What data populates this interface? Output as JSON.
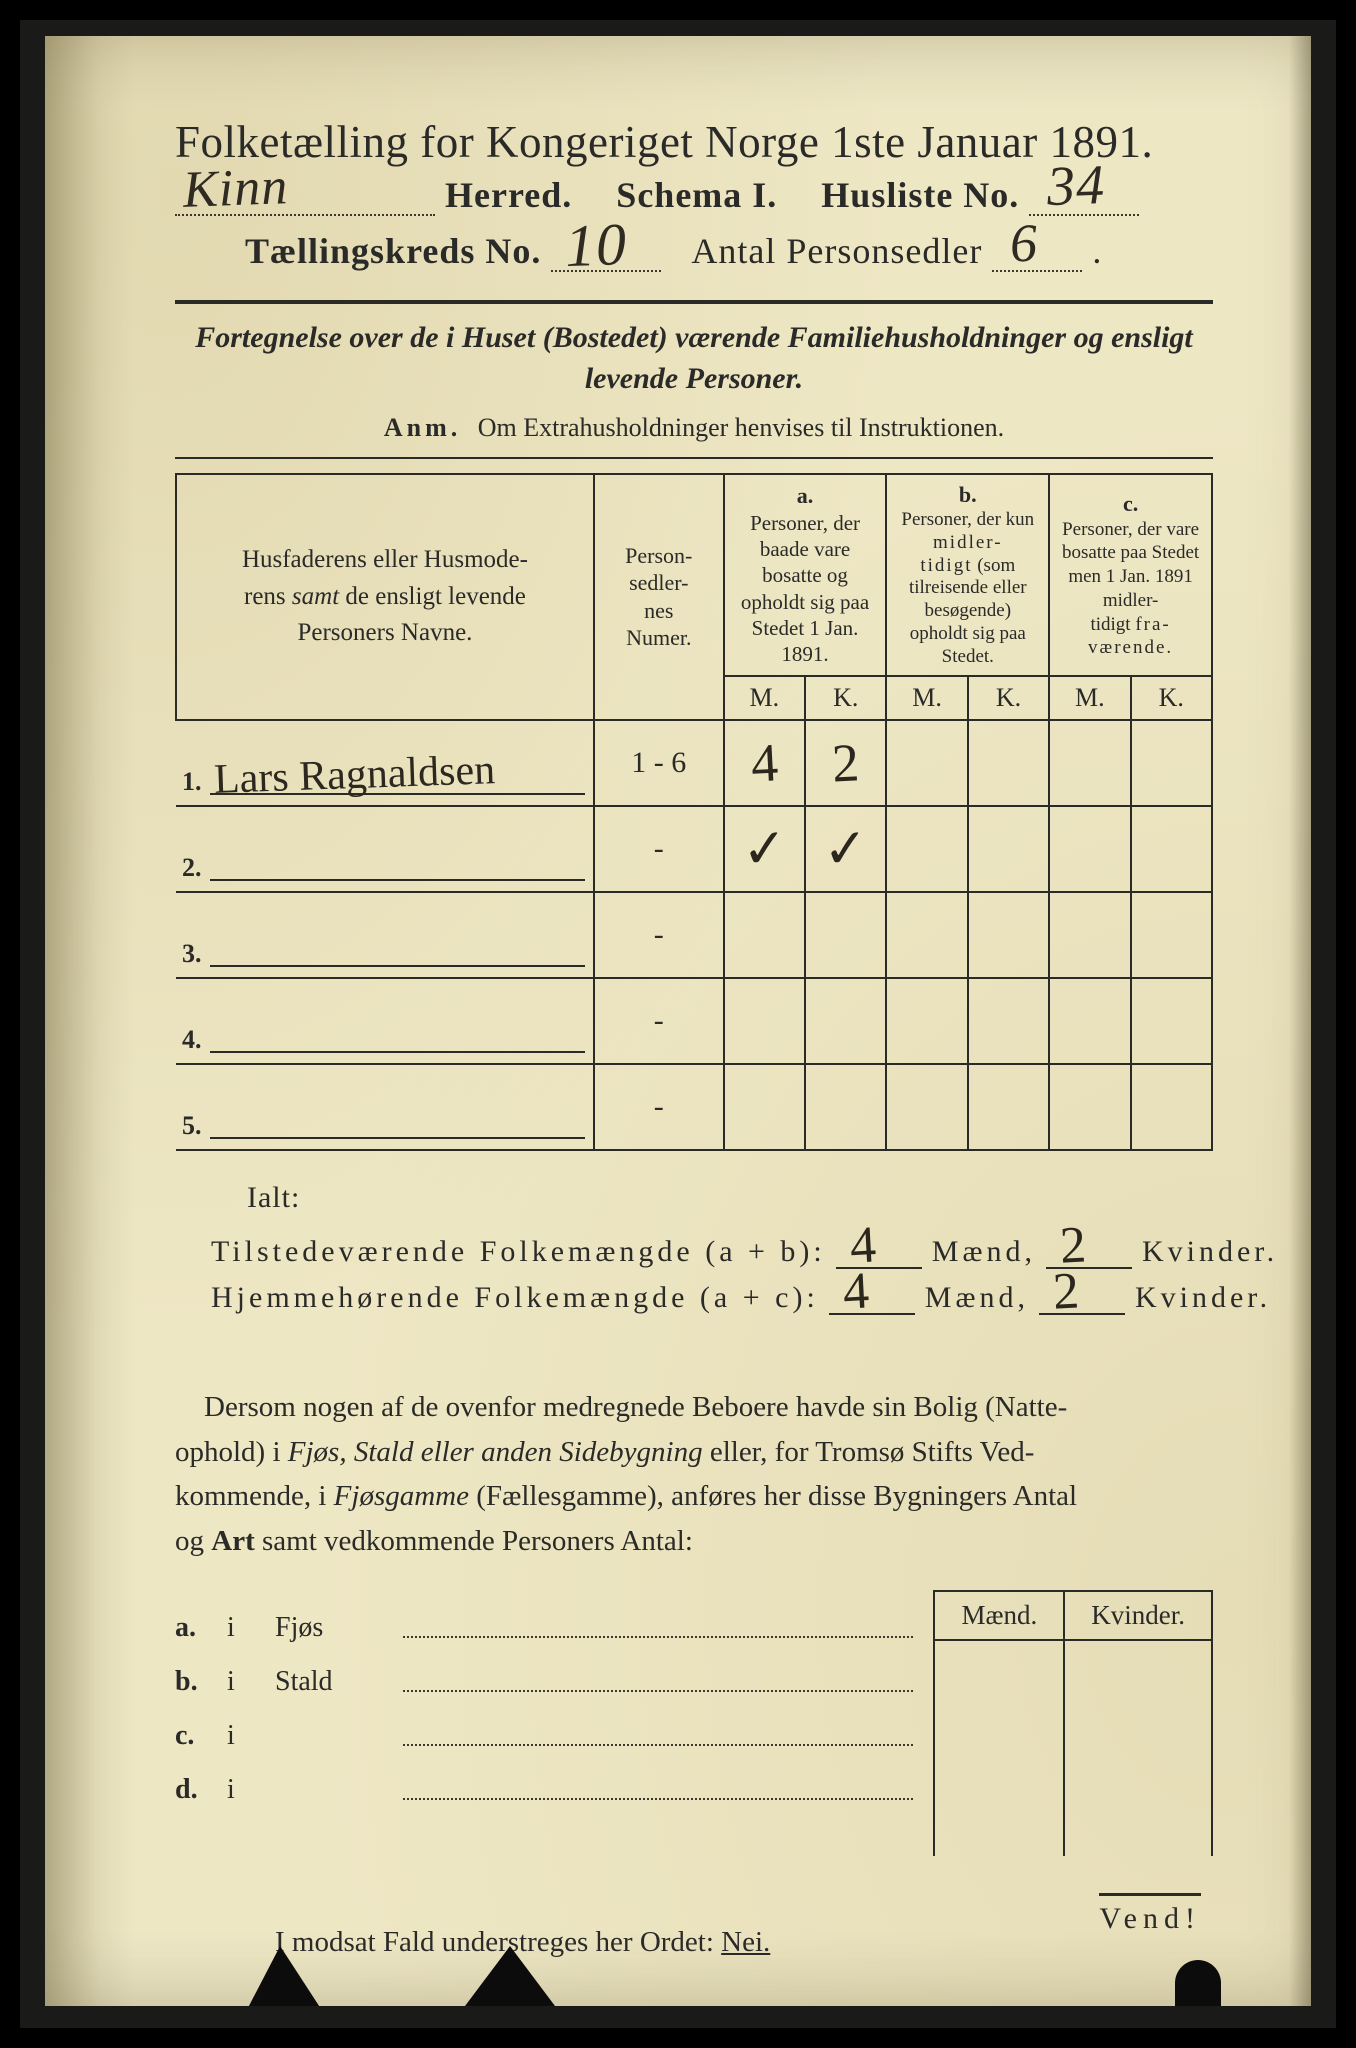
{
  "colors": {
    "paper": "#eee7c4",
    "ink": "#2a2a28",
    "handwriting": "#2d281f",
    "frame": "#000000"
  },
  "title": "Folketælling for Kongeriget Norge 1ste Januar 1891.",
  "header": {
    "herred_label": "Herred.",
    "herred_value": "Kinn",
    "schema_label": "Schema I.",
    "husliste_label": "Husliste No.",
    "husliste_value": "34",
    "kreds_label": "Tællingskreds No.",
    "kreds_value": "10",
    "antal_label": "Antal Personsedler",
    "antal_value": "6"
  },
  "subhead_html": "Fortegnelse over de i Huset (Bostedet) værende Familiehusholdninger og ensligt levende Personer.",
  "anm_label": "Anm.",
  "anm_text": "Om Extrahusholdninger henvises til Instruktionen.",
  "table": {
    "col_name": "Husfaderens eller Husmoderens samt de ensligt levende Personers Navne.",
    "col_num": "Person-\nsedler-\nnes\nNumer.",
    "col_a_tag": "a.",
    "col_a": "Personer, der baade vare bosatte og opholdt sig paa Stedet 1 Jan. 1891.",
    "col_b_tag": "b.",
    "col_b": "Personer, der kun midlertidigt (som tilreisende eller besøgende) opholdt sig paa Stedet.",
    "col_c_tag": "c.",
    "col_c": "Personer, der vare bosatte paa Stedet men 1 Jan. 1891 midlertidigt fraværende.",
    "mk_m": "M.",
    "mk_k": "K.",
    "rows": [
      {
        "idx": "1.",
        "name": "Lars Ragnaldsen",
        "num": "1 - 6",
        "a_m": "4",
        "a_k": "2",
        "b_m": "",
        "b_k": "",
        "c_m": "",
        "c_k": ""
      },
      {
        "idx": "2.",
        "name": "",
        "num": "-",
        "a_m": "✓",
        "a_k": "✓",
        "b_m": "",
        "b_k": "",
        "c_m": "",
        "c_k": ""
      },
      {
        "idx": "3.",
        "name": "",
        "num": "-",
        "a_m": "",
        "a_k": "",
        "b_m": "",
        "b_k": "",
        "c_m": "",
        "c_k": ""
      },
      {
        "idx": "4.",
        "name": "",
        "num": "-",
        "a_m": "",
        "a_k": "",
        "b_m": "",
        "b_k": "",
        "c_m": "",
        "c_k": ""
      },
      {
        "idx": "5.",
        "name": "",
        "num": "-",
        "a_m": "",
        "a_k": "",
        "b_m": "",
        "b_k": "",
        "c_m": "",
        "c_k": ""
      }
    ]
  },
  "totals": {
    "ialt": "Ialt:",
    "line1_label": "Tilstedeværende Folkemængde (a + b):",
    "line1_m": "4",
    "line1_k": "2",
    "line2_label": "Hjemmehørende Folkemængde (a + c):",
    "line2_m": "4",
    "line2_k": "2",
    "maend": "Mænd,",
    "kvinder": "Kvinder."
  },
  "para": "Dersom nogen af de ovenfor medregnede Beboere havde sin Bolig (Natteophold) i Fjøs, Stald eller anden Sidebygning eller, for Tromsø Stifts Vedkommende, i Fjøsgamme (Fællesgamme), anføres her disse Bygningers Antal og Art samt vedkommende Personers Antal:",
  "mini": {
    "head_m": "Mænd.",
    "head_k": "Kvinder.",
    "rows": [
      {
        "tag": "a.",
        "i": "i",
        "label": "Fjøs"
      },
      {
        "tag": "b.",
        "i": "i",
        "label": "Stald"
      },
      {
        "tag": "c.",
        "i": "i",
        "label": ""
      },
      {
        "tag": "d.",
        "i": "i",
        "label": ""
      }
    ]
  },
  "modsat_pre": "I modsat Fald understreges her Ordet:",
  "modsat_word": "Nei.",
  "vend": "Vend!"
}
